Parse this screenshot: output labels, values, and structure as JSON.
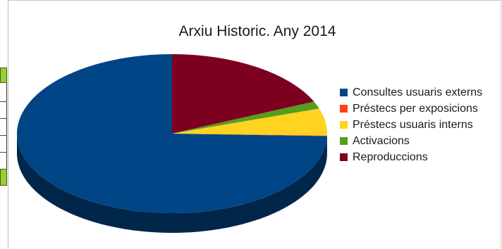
{
  "chart_data": {
    "type": "pie",
    "title": "Arxiu Historic. Any 2014",
    "categories": [
      "Consultes usuaris externs",
      "Préstecs per exposicions",
      "Préstecs usuaris interns",
      "Activacions",
      "Reproduccions"
    ],
    "values": [
      74.5,
      0.1,
      5.5,
      1.5,
      18.4
    ],
    "colors": [
      "#004586",
      "#ff420e",
      "#ffd320",
      "#579d1c",
      "#7e0021"
    ],
    "legend_position": "right",
    "style": "3d"
  }
}
